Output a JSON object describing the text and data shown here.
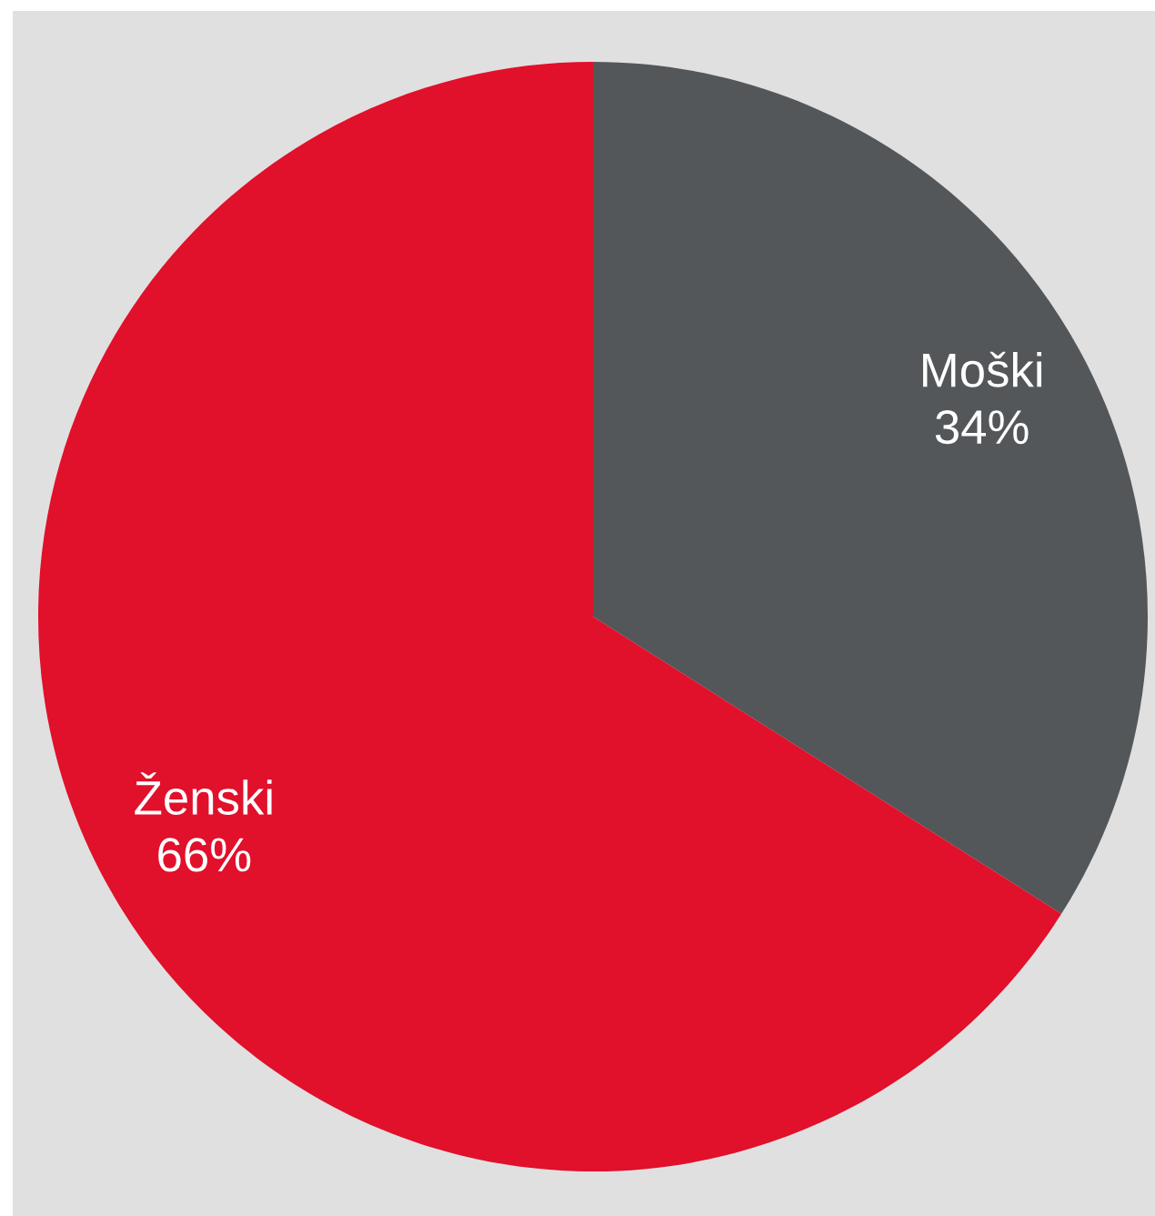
{
  "chart_data": {
    "type": "pie",
    "categories": [
      "Moški",
      "Ženski"
    ],
    "values": [
      34,
      66
    ],
    "value_labels": [
      "34%",
      "66%"
    ],
    "colors": [
      "#54575a",
      "#e1102b"
    ]
  }
}
